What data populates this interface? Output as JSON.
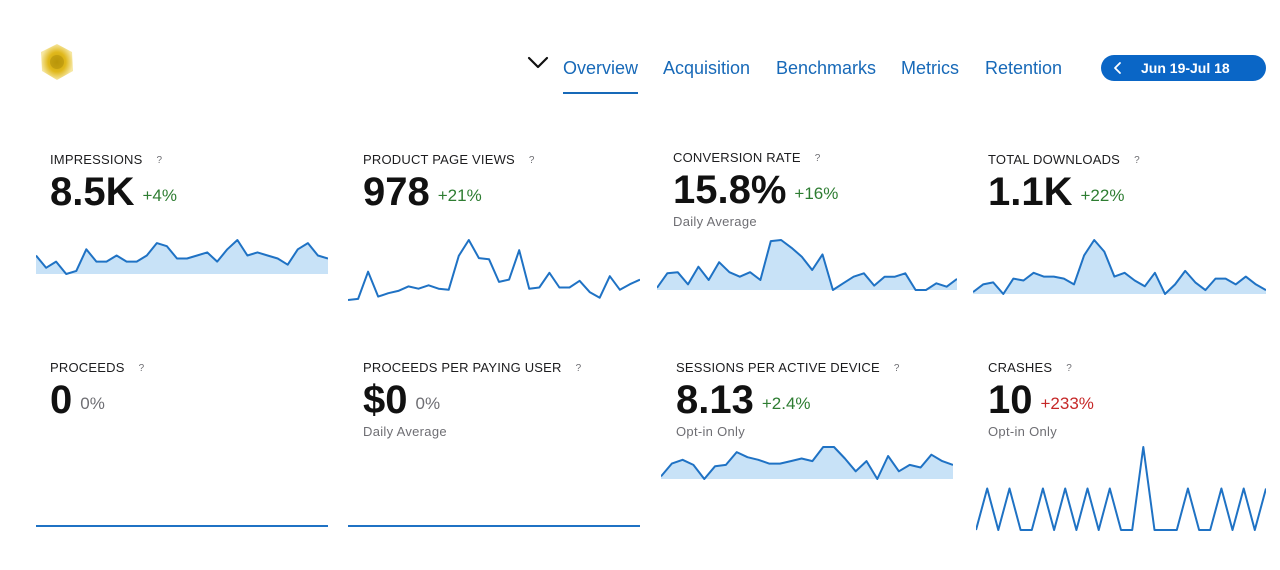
{
  "header": {
    "tabs": [
      {
        "label": "Overview",
        "active": true
      },
      {
        "label": "Acquisition",
        "active": false
      },
      {
        "label": "Benchmarks",
        "active": false
      },
      {
        "label": "Metrics",
        "active": false
      },
      {
        "label": "Retention",
        "active": false
      }
    ],
    "date_range": "Jun 19-Jul 18",
    "icons": {
      "menu": "chevron-down-icon",
      "date_back": "chevron-left-icon",
      "logo": "app-logo"
    }
  },
  "colors": {
    "accent": "#1769b8",
    "positive": "#2e7d32",
    "negative": "#c62828",
    "neutral": "#6e6e73",
    "spark_line": "#1f72c4",
    "spark_fill": "#c8e2f7"
  },
  "metrics": [
    {
      "label": "IMPRESSIONS",
      "help": "?",
      "value": "8.5K",
      "change": "+4%",
      "trend": "positive",
      "subtitle": "",
      "series": [
        60,
        56,
        58,
        54,
        55,
        62,
        58,
        58,
        60,
        58,
        58,
        60,
        64,
        63,
        59,
        59,
        60,
        61,
        58,
        62,
        65,
        60,
        61,
        60,
        59,
        57,
        62,
        64,
        60,
        59
      ]
    },
    {
      "label": "PRODUCT PAGE VIEWS",
      "help": "?",
      "value": "978",
      "change": "+21%",
      "trend": "positive",
      "subtitle": "",
      "series": [
        43,
        44,
        68,
        46,
        49,
        51,
        55,
        53,
        56,
        53,
        52,
        82,
        96,
        80,
        79,
        59,
        61,
        87,
        53,
        54,
        67,
        54,
        54,
        60,
        50,
        45,
        64,
        52,
        57,
        61
      ]
    },
    {
      "label": "CONVERSION RATE",
      "help": "?",
      "value": "15.8%",
      "change": "+16%",
      "trend": "positive",
      "subtitle": "Daily Average",
      "series": [
        0.42,
        0.55,
        0.56,
        0.45,
        0.61,
        0.49,
        0.65,
        0.56,
        0.52,
        0.56,
        0.49,
        0.84,
        0.85,
        0.78,
        0.7,
        0.58,
        0.72,
        0.4,
        0.46,
        0.52,
        0.55,
        0.44,
        0.52,
        0.52,
        0.55,
        0.4,
        0.4,
        0.46,
        0.43,
        0.5
      ]
    },
    {
      "label": "TOTAL DOWNLOADS",
      "help": "?",
      "value": "1.1K",
      "change": "+22%",
      "trend": "positive",
      "subtitle": "",
      "series": [
        31,
        35,
        36,
        30,
        38,
        37,
        41,
        39,
        39,
        38,
        35,
        50,
        58,
        52,
        39,
        41,
        37,
        34,
        41,
        30,
        35,
        42,
        36,
        32,
        38,
        38,
        35,
        39,
        35,
        32
      ]
    },
    {
      "label": "PROCEEDS",
      "help": "?",
      "value": "0",
      "change": "0%",
      "trend": "neutral",
      "subtitle": "",
      "series": [
        0,
        0,
        0,
        0,
        0,
        0,
        0,
        0,
        0,
        0,
        0,
        0,
        0,
        0,
        0,
        0,
        0,
        0,
        0,
        0,
        0,
        0,
        0,
        0,
        0,
        0,
        0,
        0,
        0,
        0
      ]
    },
    {
      "label": "PROCEEDS PER PAYING USER",
      "help": "?",
      "value": "$0",
      "change": "0%",
      "trend": "neutral",
      "subtitle": "Daily Average",
      "series": [
        0,
        0,
        0,
        0,
        0,
        0,
        0,
        0,
        0,
        0,
        0,
        0,
        0,
        0,
        0,
        0,
        0,
        0,
        0,
        0,
        0,
        0,
        0,
        0,
        0,
        0,
        0,
        0,
        0,
        0
      ]
    },
    {
      "label": "SESSIONS PER ACTIVE DEVICE",
      "help": "?",
      "value": "8.13",
      "change": "+2.4%",
      "trend": "positive",
      "subtitle": "Opt-in Only",
      "series": [
        7.6,
        8.6,
        8.9,
        8.5,
        7.4,
        8.4,
        8.5,
        9.5,
        9.1,
        8.9,
        8.6,
        8.6,
        8.8,
        9.0,
        8.8,
        9.9,
        9.9,
        9.0,
        8.0,
        8.8,
        7.4,
        9.2,
        8.0,
        8.5,
        8.3,
        9.3,
        8.8,
        8.5
      ]
    },
    {
      "label": "CRASHES",
      "help": "?",
      "value": "10",
      "change": "+233%",
      "trend": "negative",
      "subtitle": "Opt-in Only",
      "series": [
        0,
        1,
        0,
        1,
        0,
        0,
        1,
        0,
        1,
        0,
        1,
        0,
        1,
        0,
        0,
        2,
        0,
        0,
        0,
        1,
        0,
        0,
        1,
        0,
        1,
        0,
        1
      ]
    }
  ]
}
